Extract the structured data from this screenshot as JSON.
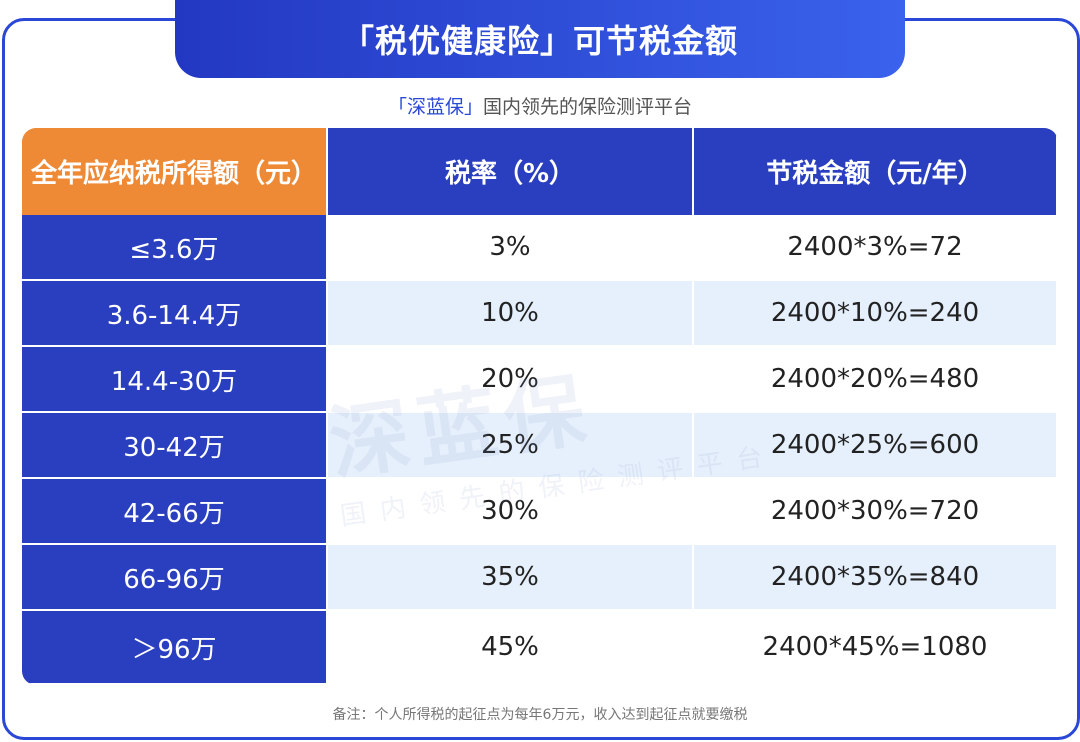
{
  "title": "「税优健康险」可节税金额",
  "subtitle": {
    "brand": "「深蓝保」",
    "text": "国内领先的保险测评平台"
  },
  "watermark": {
    "brand": "深蓝保",
    "slogan": "国内领先的保险测评平台"
  },
  "table": {
    "headers": [
      "全年应纳税所得额（元）",
      "税率（%）",
      "节税金额（元/年）"
    ],
    "rows": [
      [
        "≤3.6万",
        "3%",
        "2400*3%=72"
      ],
      [
        "3.6-14.4万",
        "10%",
        "2400*10%=240"
      ],
      [
        "14.4-30万",
        "20%",
        "2400*20%=480"
      ],
      [
        "30-42万",
        "25%",
        "2400*25%=600"
      ],
      [
        "42-66万",
        "30%",
        "2400*30%=720"
      ],
      [
        "66-96万",
        "35%",
        "2400*35%=840"
      ],
      [
        "＞96万",
        "45%",
        "2400*45%=1080"
      ]
    ]
  },
  "footnote": "备注：个人所得税的起征点为每年6万元，收入达到起征点就要缴税"
}
